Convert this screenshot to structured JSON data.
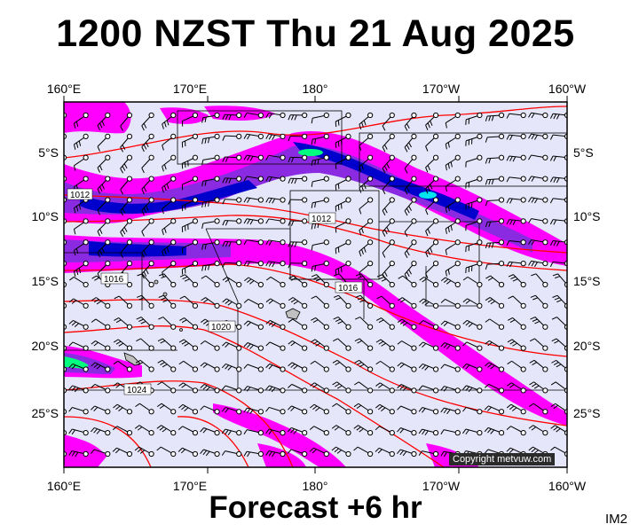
{
  "title": "1200 NZST Thu 21 Aug 2025",
  "footer": "Forecast +6 hr",
  "tag": "IM2",
  "copyright": "Copyright metvuw.com",
  "lon_labels": [
    "160°E",
    "170°E",
    "180°",
    "170°W",
    "160°W"
  ],
  "lat_labels": [
    "5°S",
    "10°S",
    "15°S",
    "20°S",
    "25°S"
  ],
  "isobar_labels": [
    "1012",
    "1012",
    "1016",
    "1016",
    "1020",
    "1024"
  ],
  "colors": {
    "sea": "#e6e6fa",
    "precip_light": "#ff00ff",
    "precip_mid": "#8a2be2",
    "precip_heavy": "#0000cd",
    "precip_extreme": "#00ff7f",
    "isobar": "#ff0000",
    "boundary": "#000000"
  },
  "map_extent": {
    "lon_min": 160,
    "lon_max": 200,
    "lat_min": -29,
    "lat_max": -1
  }
}
